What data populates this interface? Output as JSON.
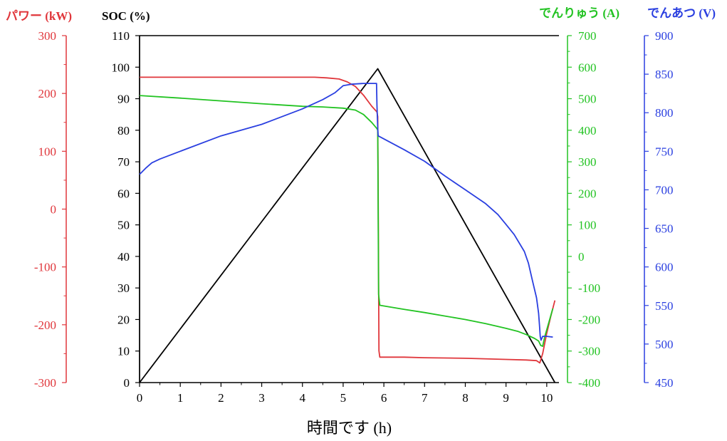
{
  "chart_data": {
    "type": "line",
    "xlabel": "時間です (h)",
    "x_ticks": [
      0,
      1,
      2,
      3,
      4,
      5,
      6,
      7,
      8,
      9,
      10
    ],
    "xlim": [
      0,
      10.3
    ],
    "axes": {
      "power": {
        "label": "パワー (kW)",
        "color": "#e0363b",
        "ylim": [
          -300,
          300
        ],
        "ticks": [
          -300,
          -200,
          -100,
          0,
          100,
          200,
          300
        ]
      },
      "soc": {
        "label": "SOC (%)",
        "color": "#000000",
        "ylim": [
          0,
          110
        ],
        "ticks": [
          0,
          10,
          20,
          30,
          40,
          50,
          60,
          70,
          80,
          90,
          100,
          110
        ]
      },
      "current": {
        "label": "でんりゅう (A)",
        "color": "#22c322",
        "ylim": [
          -400,
          700
        ],
        "ticks": [
          -400,
          -300,
          -200,
          -100,
          0,
          100,
          200,
          300,
          400,
          500,
          600,
          700
        ]
      },
      "voltage": {
        "label": "でんあつ (V)",
        "color": "#2a3fe0",
        "ylim": [
          450,
          900
        ],
        "ticks": [
          450,
          500,
          550,
          600,
          650,
          700,
          750,
          800,
          850,
          900
        ]
      }
    },
    "series": [
      {
        "axis": "soc",
        "color": "#000000",
        "x": [
          0,
          5.85,
          10.2
        ],
        "y": [
          0,
          99.5,
          0
        ]
      },
      {
        "axis": "power",
        "color": "#e0363b",
        "x": [
          0,
          1,
          2,
          3,
          4,
          4.3,
          4.6,
          4.9,
          5.1,
          5.3,
          5.5,
          5.7,
          5.83,
          5.85,
          5.86,
          5.88,
          5.9,
          6.5,
          7,
          8,
          9,
          9.5,
          9.75,
          9.83,
          9.9,
          10.0,
          10.1,
          10.2
        ],
        "y": [
          228,
          228,
          228,
          228,
          228,
          228,
          227,
          225,
          220,
          212,
          197,
          178,
          168,
          160,
          30,
          -245,
          -256,
          -256,
          -257,
          -258,
          -260,
          -261,
          -262,
          -266,
          -250,
          -215,
          -185,
          -158
        ]
      },
      {
        "axis": "current",
        "color": "#22c322",
        "x": [
          0,
          1,
          2,
          3,
          4,
          4.5,
          5,
          5.3,
          5.5,
          5.7,
          5.83,
          5.85,
          5.87,
          5.9,
          6.5,
          7,
          7.5,
          8,
          8.5,
          9,
          9.3,
          9.5,
          9.7,
          9.8,
          9.85,
          9.9,
          9.95,
          10.05,
          10.15
        ],
        "y": [
          510,
          502,
          493,
          484,
          476,
          474,
          470,
          464,
          450,
          425,
          405,
          400,
          -120,
          -155,
          -168,
          -178,
          -189,
          -200,
          -213,
          -228,
          -238,
          -248,
          -260,
          -268,
          -282,
          -285,
          -255,
          -210,
          -165
        ]
      },
      {
        "axis": "voltage",
        "color": "#2a3fe0",
        "x": [
          0,
          0.15,
          0.3,
          0.5,
          1,
          2,
          3,
          4,
          4.5,
          4.8,
          5.0,
          5.2,
          5.5,
          5.82,
          5.83,
          5.85,
          5.86,
          6.5,
          7,
          7.5,
          8,
          8.5,
          8.8,
          9,
          9.2,
          9.45,
          9.55,
          9.65,
          9.75,
          9.8,
          9.82,
          9.84,
          9.86,
          9.9,
          10.0,
          10.15
        ],
        "y": [
          720,
          728,
          735,
          740,
          750,
          770,
          785,
          805,
          817,
          826,
          835,
          837,
          838,
          838,
          810,
          780,
          770,
          752,
          737,
          718,
          700,
          682,
          668,
          655,
          642,
          620,
          605,
          582,
          560,
          540,
          525,
          510,
          505,
          510,
          510,
          509
        ]
      }
    ]
  }
}
